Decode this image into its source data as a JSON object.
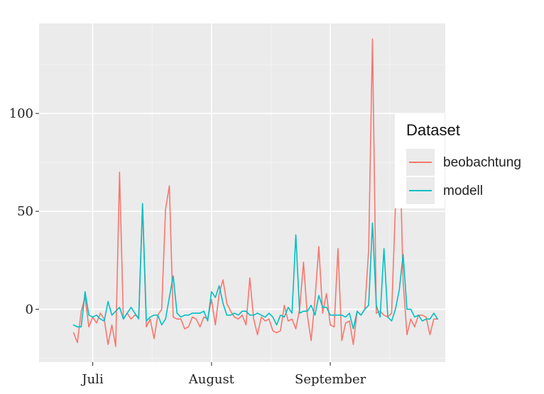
{
  "chart_data": {
    "type": "line",
    "xlabel": "",
    "ylabel": "",
    "x_tick_labels": [
      "Juli",
      "August",
      "September"
    ],
    "x_tick_dates": [
      "2023-07-01",
      "2023-08-01",
      "2023-09-01"
    ],
    "x_range": [
      "2023-06-17",
      "2023-10-01"
    ],
    "x_start": "2023-06-26",
    "y_ticks": [
      0,
      50,
      100
    ],
    "y_tick_labels": [
      "0",
      "50",
      "100"
    ],
    "ylim": [
      -27,
      146
    ],
    "grid": true,
    "legend_position": "right",
    "legend_title": "Dataset",
    "series": [
      {
        "name": "beobachtung",
        "color": "#F8766D",
        "values": [
          -12,
          -17,
          -1,
          6,
          -9,
          -4,
          -7,
          -2,
          -5,
          -18,
          -8,
          -19,
          70,
          -5,
          -2,
          -5,
          -3,
          -4,
          53,
          -9,
          -5,
          -15,
          -3,
          0,
          51,
          63,
          -4,
          -5,
          -5,
          -10,
          -9,
          -4,
          -5,
          -9,
          -4,
          -5,
          5,
          -8,
          8,
          15,
          3,
          -1,
          -4,
          -5,
          -3,
          -8,
          16,
          -5,
          -13,
          -4,
          -6,
          -5,
          -11,
          -12,
          -11,
          2,
          -6,
          -5,
          -10,
          0,
          24,
          -3,
          -16,
          5,
          32,
          -2,
          8,
          -8,
          -9,
          31,
          -16,
          -7,
          -6,
          -18,
          -1,
          -3,
          0,
          30,
          138,
          -2,
          -1,
          -3,
          -4,
          -2,
          53,
          94,
          14,
          -13,
          -5,
          -9,
          -3,
          -3,
          -4,
          -13,
          -5,
          -5
        ]
      },
      {
        "name": "modell",
        "color": "#00BFC4",
        "values": [
          -8,
          -9,
          -9,
          9,
          -3,
          -4,
          -3,
          -5,
          -6,
          4,
          -3,
          -1,
          1,
          -5,
          -2,
          1,
          -2,
          -5,
          54,
          -6,
          -4,
          -3,
          -3,
          -8,
          -5,
          6,
          17,
          -2,
          -4,
          -3,
          -3,
          -2,
          -2,
          -2,
          -1,
          -6,
          9,
          6,
          12,
          3,
          -3,
          -3,
          -2,
          -3,
          -1,
          -1,
          -3,
          -3,
          -2,
          -3,
          -4,
          -2,
          -4,
          -8,
          -3,
          -4,
          1,
          -2,
          38,
          -2,
          -1,
          -1,
          2,
          -3,
          7,
          1,
          1,
          -3,
          -3,
          -3,
          -3,
          -4,
          -2,
          -10,
          -1,
          -3,
          0,
          2,
          44,
          2,
          -4,
          31,
          -4,
          -6,
          0,
          10,
          28,
          0,
          0,
          -4,
          -3,
          -6,
          -5,
          -5,
          -2,
          -5
        ]
      }
    ]
  }
}
